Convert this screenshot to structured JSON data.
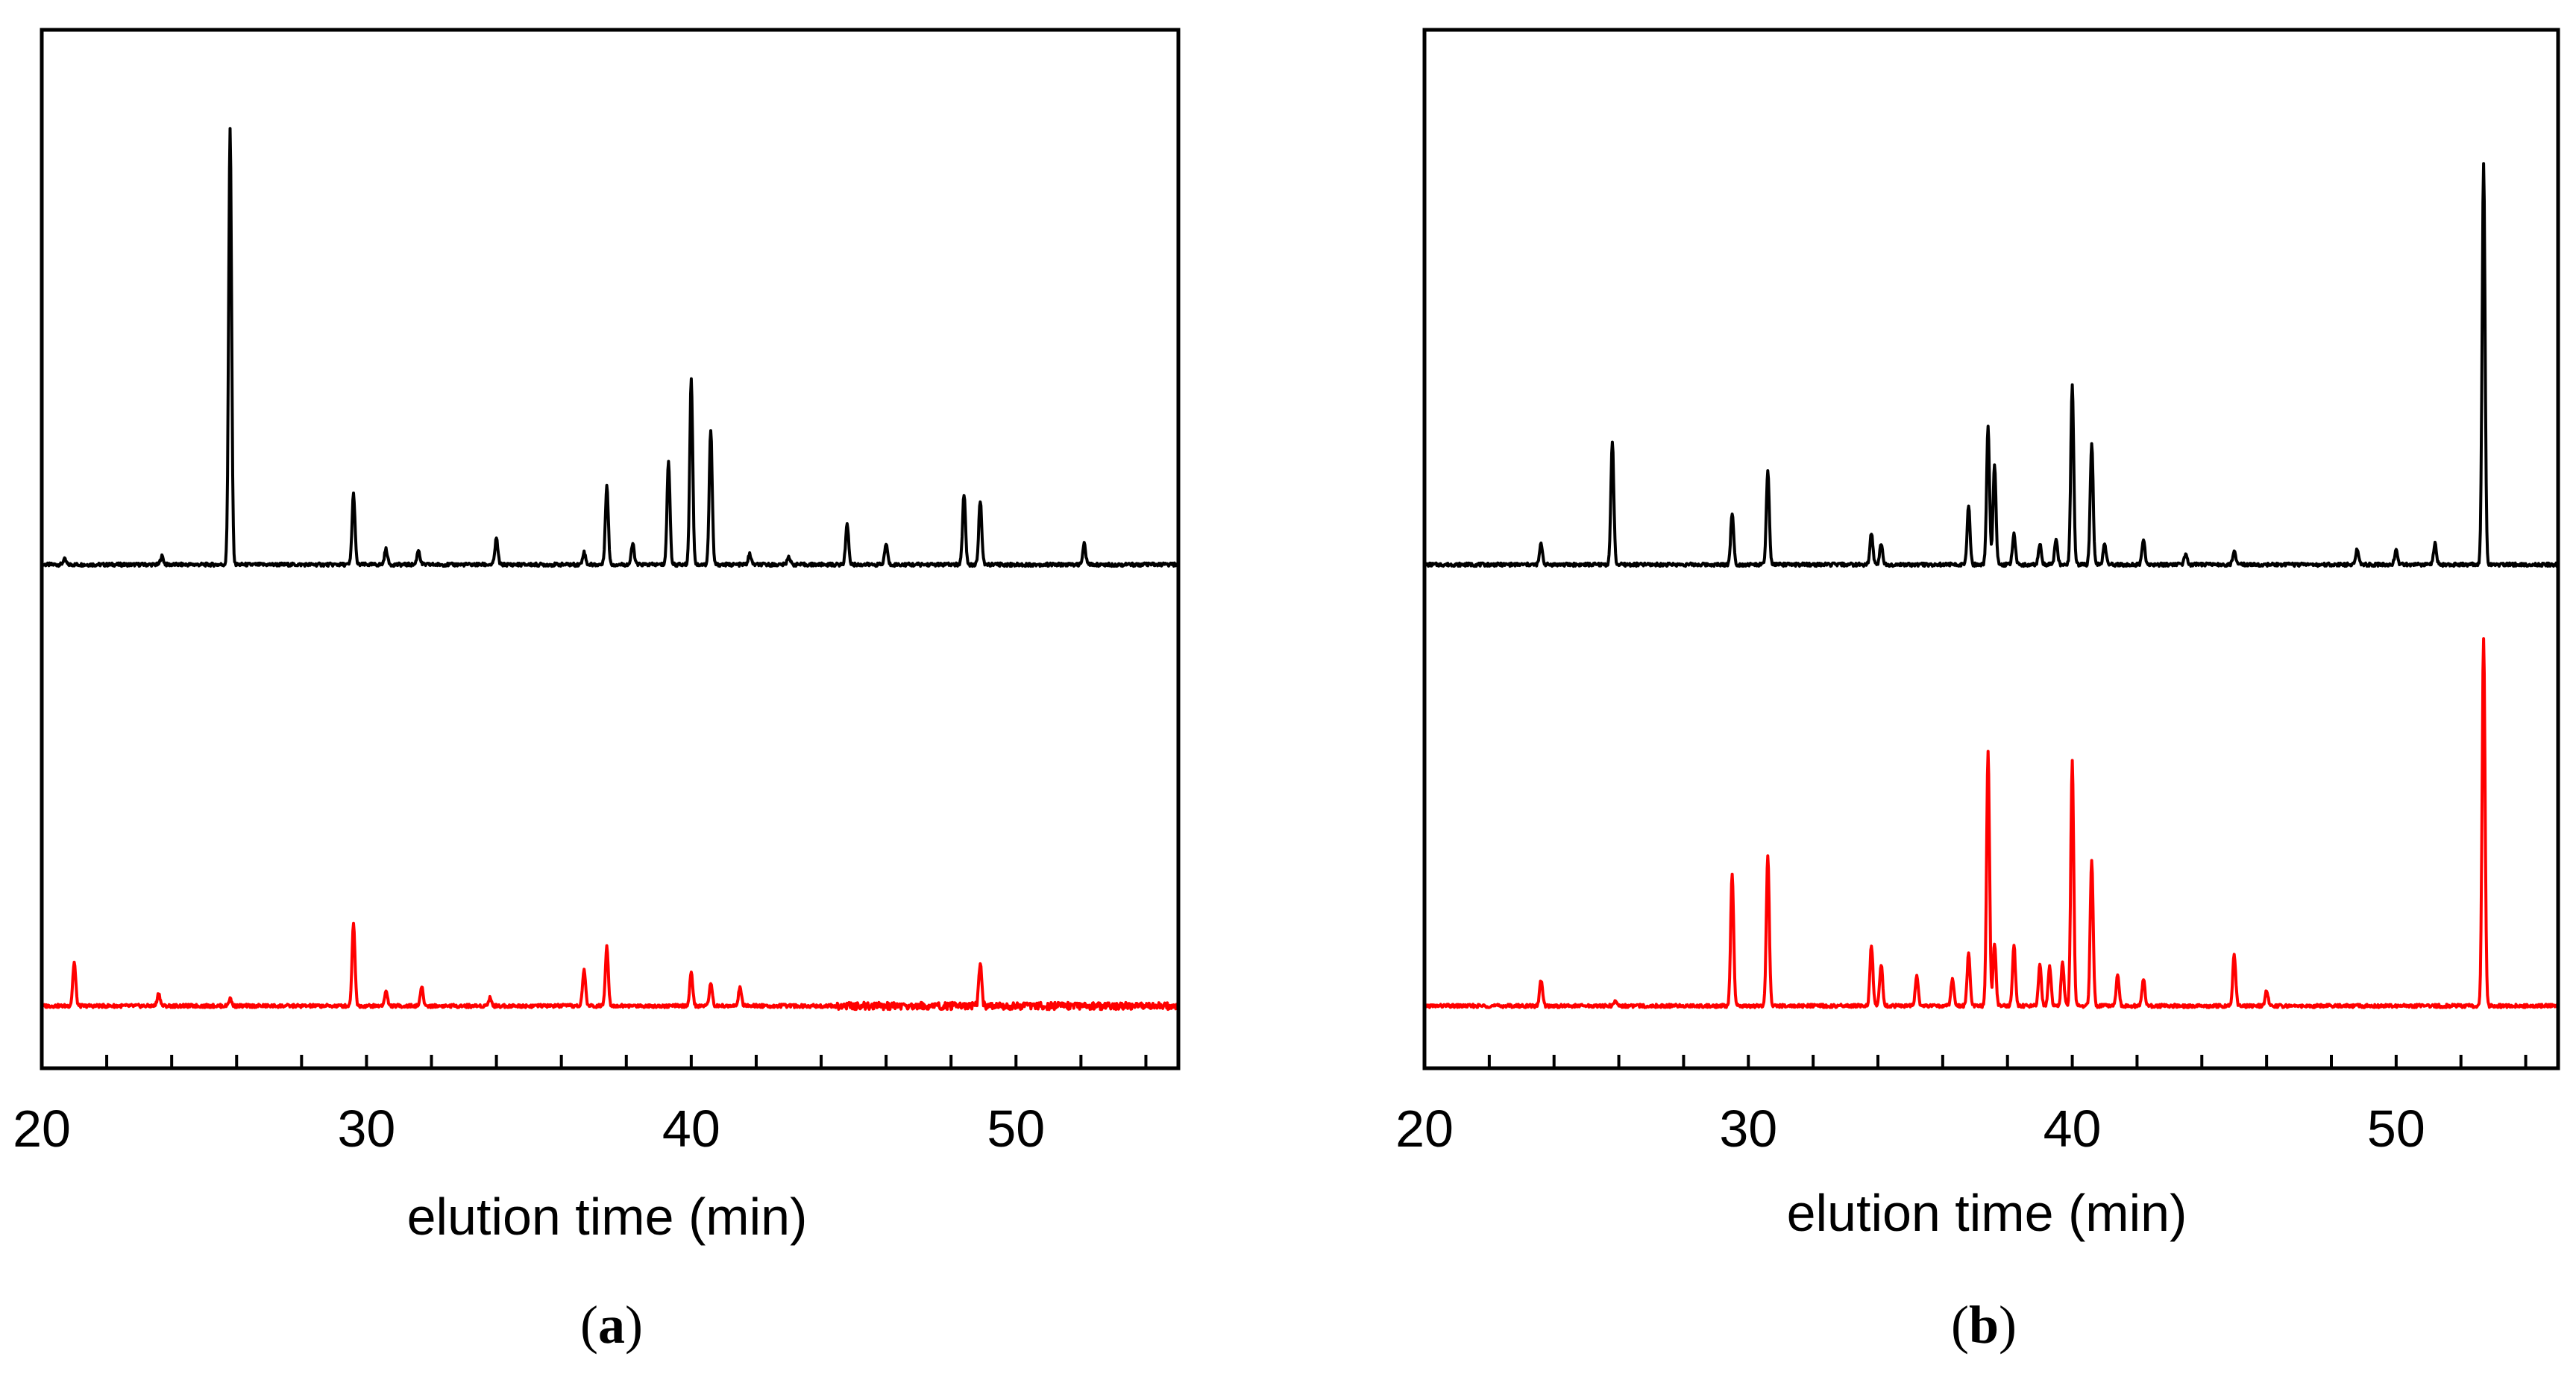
{
  "figure": {
    "panels": [
      "a",
      "b"
    ],
    "captions": [
      {
        "open": "(",
        "letter": "a",
        "close": ")"
      },
      {
        "open": "(",
        "letter": "b",
        "close": ")"
      }
    ]
  },
  "chart_data": [
    {
      "type": "line",
      "panel": "a",
      "title": "",
      "xlabel": "elution time (min)",
      "ylabel": "",
      "xlim": [
        20,
        55
      ],
      "ylim": [
        0,
        1
      ],
      "x_ticks": [
        20,
        30,
        40,
        50
      ],
      "x_tick_labels": [
        "20",
        "30",
        "40",
        "50"
      ],
      "x_minor_step": 2,
      "legend": null,
      "series": [
        {
          "name": "upper trace",
          "color": "#000000",
          "baseline": 0.485,
          "peaks": [
            {
              "t": 20.7,
              "h": 0.005
            },
            {
              "t": 23.7,
              "h": 0.008
            },
            {
              "t": 25.8,
              "h": 0.42
            },
            {
              "t": 29.6,
              "h": 0.068
            },
            {
              "t": 30.6,
              "h": 0.015
            },
            {
              "t": 31.6,
              "h": 0.014
            },
            {
              "t": 34.0,
              "h": 0.025
            },
            {
              "t": 36.7,
              "h": 0.012
            },
            {
              "t": 37.4,
              "h": 0.076
            },
            {
              "t": 38.2,
              "h": 0.02
            },
            {
              "t": 39.3,
              "h": 0.1
            },
            {
              "t": 40.0,
              "h": 0.18
            },
            {
              "t": 40.6,
              "h": 0.13
            },
            {
              "t": 41.8,
              "h": 0.01
            },
            {
              "t": 43.0,
              "h": 0.008
            },
            {
              "t": 44.8,
              "h": 0.04
            },
            {
              "t": 46.0,
              "h": 0.02
            },
            {
              "t": 48.4,
              "h": 0.068
            },
            {
              "t": 48.9,
              "h": 0.062
            },
            {
              "t": 52.1,
              "h": 0.02
            }
          ]
        },
        {
          "name": "lower trace",
          "color": "#ff0000",
          "baseline": 0.06,
          "peaks": [
            {
              "t": 21.0,
              "h": 0.042
            },
            {
              "t": 23.6,
              "h": 0.012
            },
            {
              "t": 25.8,
              "h": 0.007
            },
            {
              "t": 29.6,
              "h": 0.08
            },
            {
              "t": 30.6,
              "h": 0.014
            },
            {
              "t": 31.7,
              "h": 0.018
            },
            {
              "t": 33.8,
              "h": 0.008
            },
            {
              "t": 36.7,
              "h": 0.035
            },
            {
              "t": 37.4,
              "h": 0.058
            },
            {
              "t": 40.0,
              "h": 0.032
            },
            {
              "t": 40.6,
              "h": 0.022
            },
            {
              "t": 41.5,
              "h": 0.018
            },
            {
              "t": 48.9,
              "h": 0.04
            }
          ]
        }
      ]
    },
    {
      "type": "line",
      "panel": "b",
      "title": "",
      "xlabel": "elution time (min)",
      "ylabel": "",
      "xlim": [
        20,
        55
      ],
      "ylim": [
        0,
        1
      ],
      "x_ticks": [
        20,
        30,
        40,
        50
      ],
      "x_tick_labels": [
        "20",
        "30",
        "40",
        "50"
      ],
      "x_minor_step": 2,
      "legend": null,
      "series": [
        {
          "name": "upper trace",
          "color": "#000000",
          "baseline": 0.485,
          "peaks": [
            {
              "t": 23.6,
              "h": 0.02
            },
            {
              "t": 25.8,
              "h": 0.118
            },
            {
              "t": 29.5,
              "h": 0.05
            },
            {
              "t": 30.6,
              "h": 0.09
            },
            {
              "t": 33.8,
              "h": 0.03
            },
            {
              "t": 34.1,
              "h": 0.02
            },
            {
              "t": 36.8,
              "h": 0.056
            },
            {
              "t": 37.4,
              "h": 0.133
            },
            {
              "t": 37.6,
              "h": 0.097
            },
            {
              "t": 38.2,
              "h": 0.03
            },
            {
              "t": 39.0,
              "h": 0.02
            },
            {
              "t": 39.5,
              "h": 0.025
            },
            {
              "t": 40.0,
              "h": 0.172
            },
            {
              "t": 40.6,
              "h": 0.118
            },
            {
              "t": 41.0,
              "h": 0.02
            },
            {
              "t": 42.2,
              "h": 0.024
            },
            {
              "t": 43.5,
              "h": 0.01
            },
            {
              "t": 45.0,
              "h": 0.012
            },
            {
              "t": 48.8,
              "h": 0.015
            },
            {
              "t": 50.0,
              "h": 0.015
            },
            {
              "t": 51.2,
              "h": 0.02
            },
            {
              "t": 52.7,
              "h": 0.385
            }
          ]
        },
        {
          "name": "lower trace",
          "color": "#ff0000",
          "baseline": 0.06,
          "peaks": [
            {
              "t": 23.6,
              "h": 0.025
            },
            {
              "t": 25.9,
              "h": 0.005
            },
            {
              "t": 29.5,
              "h": 0.128
            },
            {
              "t": 30.6,
              "h": 0.145
            },
            {
              "t": 33.8,
              "h": 0.058
            },
            {
              "t": 34.1,
              "h": 0.04
            },
            {
              "t": 35.2,
              "h": 0.028
            },
            {
              "t": 36.3,
              "h": 0.025
            },
            {
              "t": 36.8,
              "h": 0.05
            },
            {
              "t": 37.4,
              "h": 0.245
            },
            {
              "t": 37.6,
              "h": 0.06
            },
            {
              "t": 38.2,
              "h": 0.058
            },
            {
              "t": 39.0,
              "h": 0.04
            },
            {
              "t": 39.3,
              "h": 0.038
            },
            {
              "t": 39.7,
              "h": 0.042
            },
            {
              "t": 40.0,
              "h": 0.235
            },
            {
              "t": 40.6,
              "h": 0.14
            },
            {
              "t": 41.4,
              "h": 0.03
            },
            {
              "t": 42.2,
              "h": 0.025
            },
            {
              "t": 45.0,
              "h": 0.05
            },
            {
              "t": 46.0,
              "h": 0.015
            },
            {
              "t": 52.7,
              "h": 0.355
            }
          ]
        }
      ]
    }
  ]
}
